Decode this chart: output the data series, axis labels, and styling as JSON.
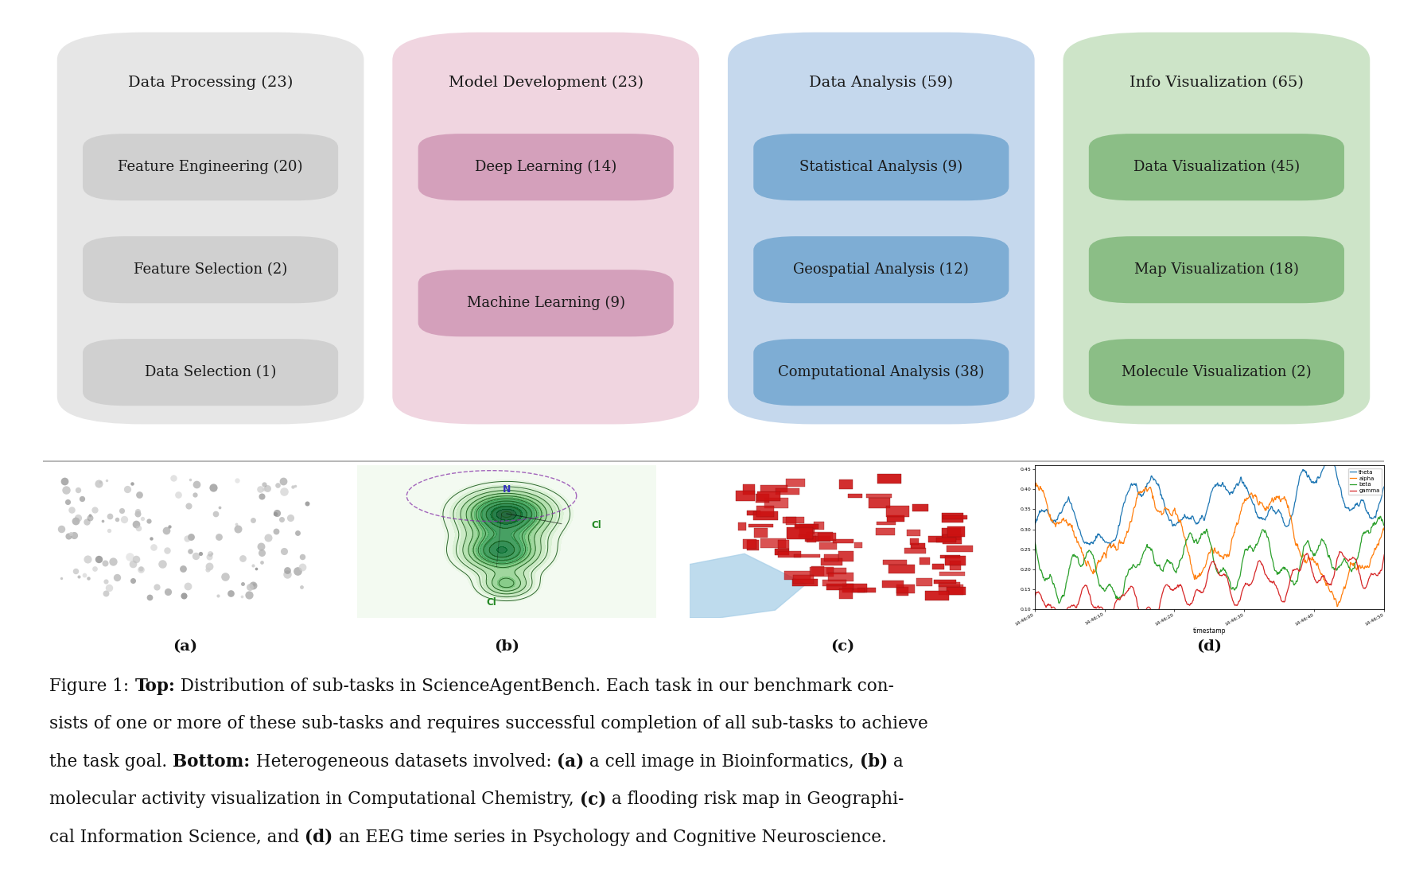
{
  "categories": [
    {
      "title": "Data Processing (23)",
      "bg_color": "#e6e6e6",
      "item_color": "#d0d0d0",
      "items": [
        "Feature Engineering (20)",
        "Feature Selection (2)",
        "Data Selection (1)"
      ]
    },
    {
      "title": "Model Development (23)",
      "bg_color": "#f0d5e0",
      "item_color": "#d4a0bb",
      "items": [
        "Deep Learning (14)",
        "Machine Learning (9)"
      ]
    },
    {
      "title": "Data Analysis (59)",
      "bg_color": "#c5d8ed",
      "item_color": "#7eadd4",
      "items": [
        "Statistical Analysis (9)",
        "Geospatial Analysis (12)",
        "Computational Analysis (38)"
      ]
    },
    {
      "title": "Info Visualization (65)",
      "bg_color": "#cde4c8",
      "item_color": "#8bbe86",
      "items": [
        "Data Visualization (45)",
        "Map Visualization (18)",
        "Molecule Visualization (2)"
      ]
    }
  ],
  "subcaptions": [
    "(a)",
    "(b)",
    "(c)",
    "(d)"
  ],
  "caption_lines": [
    [
      [
        "Figure 1: ",
        false
      ],
      [
        "Top:",
        true
      ],
      [
        " Distribution of sub-tasks in ScienceAgentBench. Each task in our benchmark con-",
        false
      ]
    ],
    [
      [
        "sists of one or more of these sub-tasks and requires successful completion of all sub-tasks to achieve",
        false
      ]
    ],
    [
      [
        "the task goal. ",
        false
      ],
      [
        "Bottom:",
        true
      ],
      [
        " Heterogeneous datasets involved: ",
        false
      ],
      [
        "(a)",
        true
      ],
      [
        " a cell image in Bioinformatics, ",
        false
      ],
      [
        "(b)",
        true
      ],
      [
        " a",
        false
      ]
    ],
    [
      [
        "molecular activity visualization in Computational Chemistry, ",
        false
      ],
      [
        "(c)",
        true
      ],
      [
        " a flooding risk map in Geographi-",
        false
      ]
    ],
    [
      [
        "cal Information Science, and ",
        false
      ],
      [
        "(d)",
        true
      ],
      [
        " an EEG time series in Psychology and Cognitive Neuroscience.",
        false
      ]
    ]
  ],
  "bg_color": "#ffffff"
}
